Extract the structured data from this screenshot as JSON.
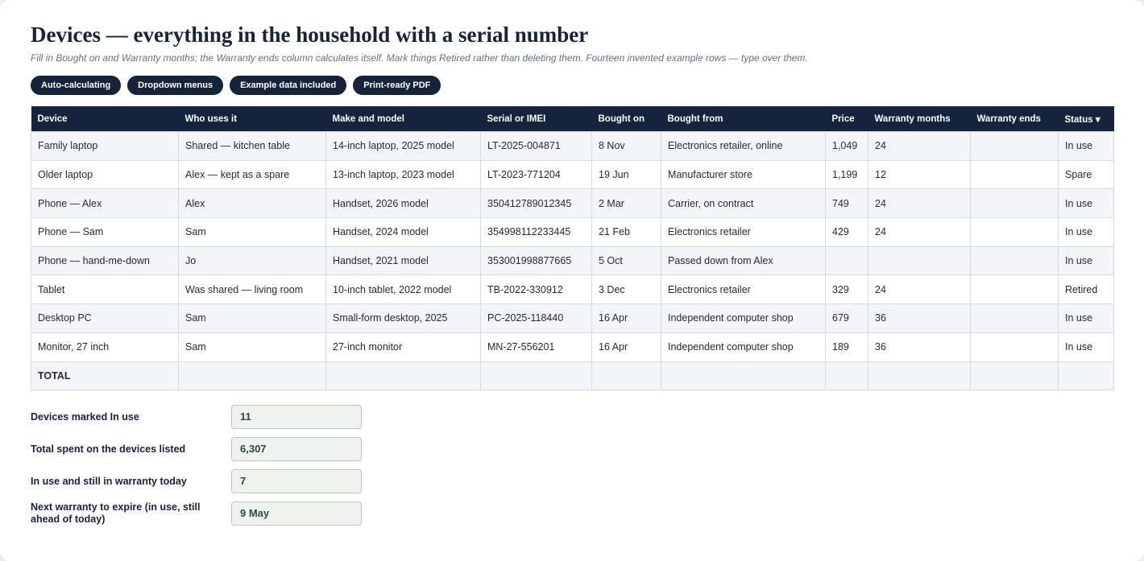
{
  "header": {
    "title": "Devices — everything in the household with a serial number",
    "subtitle": "Fill in Bought on and Warranty months; the Warranty ends column calculates itself. Mark things Retired rather than deleting them. Fourteen invented example rows — type over them."
  },
  "tags": [
    "Auto-calculating",
    "Dropdown menus",
    "Example data included",
    "Print-ready PDF"
  ],
  "table": {
    "columns": [
      "Device",
      "Who uses it",
      "Make and model",
      "Serial or IMEI",
      "Bought on",
      "Bought from",
      "Price",
      "Warranty months",
      "Warranty ends",
      "Status ▾"
    ],
    "rows": [
      [
        "Family laptop",
        "Shared — kitchen table",
        "14-inch laptop, 2025 model",
        "LT-2025-004871",
        "8 Nov",
        "Electronics retailer, online",
        "1,049",
        "24",
        null,
        "In use"
      ],
      [
        "Older laptop",
        "Alex — kept as a spare",
        "13-inch laptop, 2023 model",
        "LT-2023-771204",
        "19 Jun",
        "Manufacturer store",
        "1,199",
        "12",
        null,
        "Spare"
      ],
      [
        "Phone — Alex",
        "Alex",
        "Handset, 2026 model",
        "350412789012345",
        "2 Mar",
        "Carrier, on contract",
        "749",
        "24",
        null,
        "In use"
      ],
      [
        "Phone — Sam",
        "Sam",
        "Handset, 2024 model",
        "354998112233445",
        "21 Feb",
        "Electronics retailer",
        "429",
        "24",
        null,
        "In use"
      ],
      [
        "Phone — hand-me-down",
        "Jo",
        "Handset, 2021 model",
        "353001998877665",
        "5 Oct",
        "Passed down from Alex",
        null,
        null,
        null,
        "In use"
      ],
      [
        "Tablet",
        "Was shared — living room",
        "10-inch tablet, 2022 model",
        "TB-2022-330912",
        "3 Dec",
        "Electronics retailer",
        "329",
        "24",
        null,
        "Retired"
      ],
      [
        "Desktop PC",
        "Sam",
        "Small-form desktop, 2025",
        "PC-2025-118440",
        "16 Apr",
        "Independent computer shop",
        "679",
        "36",
        null,
        "In use"
      ],
      [
        "Monitor, 27 inch",
        "Sam",
        "27-inch monitor",
        "MN-27-556201",
        "16 Apr",
        "Independent computer shop",
        "189",
        "36",
        null,
        "In use"
      ]
    ],
    "total_label": "TOTAL"
  },
  "summary": [
    {
      "label": "Devices marked In use",
      "value": "11"
    },
    {
      "label": "Total spent on the devices listed",
      "value": "6,307"
    },
    {
      "label": "In use and still in warranty today",
      "value": "7"
    },
    {
      "label": "Next warranty to expire (in use, still ahead of today)",
      "value": "9 May"
    }
  ]
}
